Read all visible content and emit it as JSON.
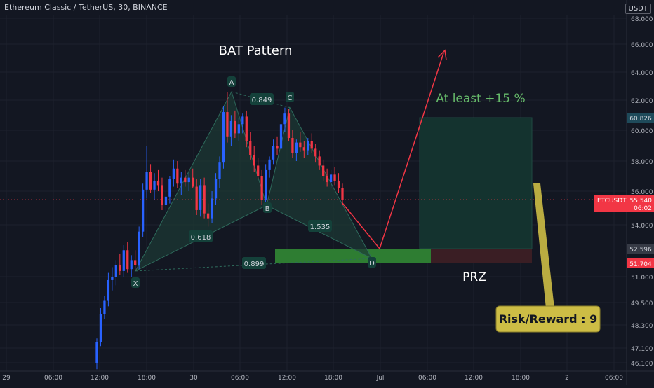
{
  "header": {
    "symbol_title": "Ethereum Classic / TetherUS, 30, BINANCE",
    "currency": "USDT"
  },
  "chart_data": {
    "type": "candlestick",
    "title": "BAT Pattern",
    "y_ticks": [
      "68.000",
      "66.000",
      "64.000",
      "62.000",
      "60.000",
      "58.000",
      "56.000",
      "54.000",
      "51.000",
      "49.500",
      "48.300",
      "47.100",
      "46.100"
    ],
    "x_ticks": [
      "29",
      "06:00",
      "12:00",
      "18:00",
      "30",
      "06:00",
      "12:00",
      "18:00",
      "Jul",
      "06:00",
      "12:00",
      "18:00",
      "2",
      "06:00"
    ],
    "price_labels": [
      {
        "text": "60.826",
        "kind": "target"
      },
      {
        "symbol": "ETCUSDT",
        "price": "55.540",
        "timer": "06:02",
        "kind": "current"
      },
      {
        "text": "52.596",
        "kind": "entry"
      },
      {
        "text": "51.704",
        "kind": "stop"
      }
    ],
    "pattern_points": [
      {
        "label": "X",
        "price": 51.3
      },
      {
        "label": "A",
        "price": 62.6
      },
      {
        "label": "B",
        "price": 55.2
      },
      {
        "label": "C",
        "price": 61.5
      },
      {
        "label": "D",
        "price": 52.0
      }
    ],
    "ratios": [
      "0.849",
      "0.618",
      "1.535",
      "0.899"
    ],
    "annotations": {
      "target_text": "At least +15 %",
      "prz_text": "PRZ",
      "risk_reward": "Risk/Reward : 9"
    },
    "candles": [
      {
        "o": 46.3,
        "h": 47.6,
        "l": 46.0,
        "c": 47.4
      },
      {
        "o": 47.4,
        "h": 49.2,
        "l": 47.2,
        "c": 48.9
      },
      {
        "o": 48.9,
        "h": 49.9,
        "l": 48.6,
        "c": 49.6
      },
      {
        "o": 49.6,
        "h": 51.2,
        "l": 49.3,
        "c": 50.8
      },
      {
        "o": 50.8,
        "h": 51.5,
        "l": 50.2,
        "c": 51.0
      },
      {
        "o": 51.0,
        "h": 51.9,
        "l": 50.5,
        "c": 51.6
      },
      {
        "o": 51.6,
        "h": 52.3,
        "l": 51.1,
        "c": 51.3
      },
      {
        "o": 51.3,
        "h": 52.8,
        "l": 51.0,
        "c": 52.5
      },
      {
        "o": 52.5,
        "h": 53.0,
        "l": 51.2,
        "c": 51.4
      },
      {
        "o": 51.4,
        "h": 52.2,
        "l": 51.0,
        "c": 51.9
      },
      {
        "o": 51.9,
        "h": 52.5,
        "l": 51.3,
        "c": 51.6
      },
      {
        "o": 51.6,
        "h": 53.9,
        "l": 51.4,
        "c": 53.6
      },
      {
        "o": 53.6,
        "h": 56.5,
        "l": 53.3,
        "c": 56.1
      },
      {
        "o": 56.1,
        "h": 59.0,
        "l": 55.6,
        "c": 57.3
      },
      {
        "o": 57.3,
        "h": 57.8,
        "l": 55.9,
        "c": 56.1
      },
      {
        "o": 56.1,
        "h": 57.2,
        "l": 55.5,
        "c": 56.7
      },
      {
        "o": 56.7,
        "h": 57.4,
        "l": 56.0,
        "c": 56.4
      },
      {
        "o": 56.4,
        "h": 56.9,
        "l": 54.9,
        "c": 55.2
      },
      {
        "o": 55.2,
        "h": 56.0,
        "l": 54.8,
        "c": 55.7
      },
      {
        "o": 55.7,
        "h": 57.0,
        "l": 55.3,
        "c": 56.8
      },
      {
        "o": 56.8,
        "h": 58.1,
        "l": 56.3,
        "c": 57.5
      },
      {
        "o": 57.5,
        "h": 58.0,
        "l": 56.2,
        "c": 56.5
      },
      {
        "o": 56.5,
        "h": 57.3,
        "l": 55.8,
        "c": 56.9
      },
      {
        "o": 56.9,
        "h": 57.4,
        "l": 56.3,
        "c": 56.6
      },
      {
        "o": 56.6,
        "h": 57.2,
        "l": 56.0,
        "c": 56.9
      },
      {
        "o": 56.9,
        "h": 57.5,
        "l": 56.2,
        "c": 56.3
      },
      {
        "o": 56.3,
        "h": 56.8,
        "l": 54.6,
        "c": 54.9
      },
      {
        "o": 54.9,
        "h": 56.8,
        "l": 54.5,
        "c": 56.4
      },
      {
        "o": 56.4,
        "h": 56.9,
        "l": 54.4,
        "c": 54.7
      },
      {
        "o": 54.7,
        "h": 55.3,
        "l": 53.9,
        "c": 54.4
      },
      {
        "o": 54.4,
        "h": 56.0,
        "l": 54.1,
        "c": 55.6
      },
      {
        "o": 55.6,
        "h": 57.2,
        "l": 55.2,
        "c": 56.8
      },
      {
        "o": 56.8,
        "h": 58.3,
        "l": 56.2,
        "c": 57.9
      },
      {
        "o": 57.9,
        "h": 61.6,
        "l": 57.5,
        "c": 61.2
      },
      {
        "o": 61.2,
        "h": 62.6,
        "l": 59.2,
        "c": 59.6
      },
      {
        "o": 59.6,
        "h": 61.0,
        "l": 59.0,
        "c": 60.6
      },
      {
        "o": 60.6,
        "h": 61.3,
        "l": 59.5,
        "c": 59.8
      },
      {
        "o": 59.8,
        "h": 60.8,
        "l": 59.3,
        "c": 60.4
      },
      {
        "o": 60.4,
        "h": 61.1,
        "l": 59.8,
        "c": 60.9
      },
      {
        "o": 60.9,
        "h": 61.3,
        "l": 58.9,
        "c": 59.3
      },
      {
        "o": 59.3,
        "h": 59.9,
        "l": 58.1,
        "c": 58.4
      },
      {
        "o": 58.4,
        "h": 59.0,
        "l": 57.3,
        "c": 57.7
      },
      {
        "o": 57.7,
        "h": 58.2,
        "l": 56.8,
        "c": 57.0
      },
      {
        "o": 57.0,
        "h": 57.4,
        "l": 55.2,
        "c": 55.5
      },
      {
        "o": 55.5,
        "h": 57.8,
        "l": 55.3,
        "c": 57.4
      },
      {
        "o": 57.4,
        "h": 58.3,
        "l": 56.9,
        "c": 58.1
      },
      {
        "o": 58.1,
        "h": 59.4,
        "l": 57.8,
        "c": 59.0
      },
      {
        "o": 59.0,
        "h": 59.6,
        "l": 58.4,
        "c": 58.8
      },
      {
        "o": 58.8,
        "h": 60.6,
        "l": 58.5,
        "c": 60.4
      },
      {
        "o": 60.4,
        "h": 61.5,
        "l": 59.9,
        "c": 61.1
      },
      {
        "o": 61.1,
        "h": 61.4,
        "l": 59.3,
        "c": 59.5
      },
      {
        "o": 59.5,
        "h": 60.0,
        "l": 58.2,
        "c": 58.5
      },
      {
        "o": 58.5,
        "h": 59.4,
        "l": 58.0,
        "c": 59.2
      },
      {
        "o": 59.2,
        "h": 59.9,
        "l": 58.6,
        "c": 58.9
      },
      {
        "o": 58.9,
        "h": 59.3,
        "l": 58.2,
        "c": 58.7
      },
      {
        "o": 58.7,
        "h": 59.5,
        "l": 58.4,
        "c": 59.3
      },
      {
        "o": 59.3,
        "h": 59.8,
        "l": 58.5,
        "c": 58.8
      },
      {
        "o": 58.8,
        "h": 59.1,
        "l": 57.9,
        "c": 58.3
      },
      {
        "o": 58.3,
        "h": 58.7,
        "l": 57.4,
        "c": 57.7
      },
      {
        "o": 57.7,
        "h": 58.1,
        "l": 56.7,
        "c": 57.0
      },
      {
        "o": 57.0,
        "h": 57.5,
        "l": 56.3,
        "c": 56.6
      },
      {
        "o": 56.6,
        "h": 57.4,
        "l": 56.2,
        "c": 57.1
      },
      {
        "o": 57.1,
        "h": 57.6,
        "l": 56.4,
        "c": 56.7
      },
      {
        "o": 56.7,
        "h": 57.2,
        "l": 55.9,
        "c": 56.2
      },
      {
        "o": 56.2,
        "h": 56.5,
        "l": 55.2,
        "c": 55.5
      }
    ],
    "colors": {
      "background": "#131722",
      "grid": "#1e222d",
      "up": "#2962ff",
      "down": "#f23645",
      "pattern_fill": "#1d3b34",
      "pattern_line": "#2e6b5c",
      "label_bg": "#14413a",
      "label_text": "#d1d4dc",
      "prz_green": "#2e7d32",
      "prz_red": "#3a1e24",
      "target_zone": "#14332f",
      "target_text": "#66bb6a",
      "arrow_red": "#f23645",
      "rr_bg": "#cdbd45",
      "rr_text": "#131722"
    }
  }
}
